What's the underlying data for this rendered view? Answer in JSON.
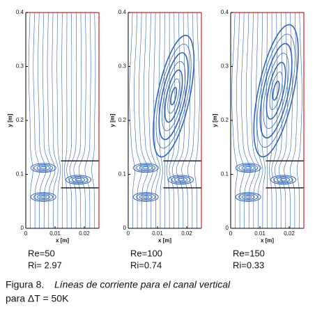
{
  "chart_data": [
    {
      "type": "streamline",
      "xlabel": "x [m]",
      "ylabel": "y [m]",
      "xlim": [
        0,
        0.025
      ],
      "ylim": [
        0,
        0.4
      ],
      "xticks": [
        0,
        0.01,
        0.02
      ],
      "yticks": [
        0,
        0.1,
        0.2,
        0.3,
        0.4
      ],
      "notes": [
        "Re=50",
        "Ri= 2.97"
      ],
      "color": "#2f64c0",
      "wall_color": "#d42020"
    },
    {
      "type": "streamline",
      "xlabel": "x [m]",
      "ylabel": "y [m]",
      "xlim": [
        0,
        0.025
      ],
      "ylim": [
        0,
        0.4
      ],
      "xticks": [
        0,
        0.01,
        0.02
      ],
      "yticks": [
        0,
        0.1,
        0.2,
        0.3,
        0.4
      ],
      "notes": [
        "Re=100",
        "Ri=0.74"
      ],
      "color": "#2f64c0",
      "wall_color": "#d42020"
    },
    {
      "type": "streamline",
      "xlabel": "x [m]",
      "ylabel": "y [m]",
      "xlim": [
        0,
        0.025
      ],
      "ylim": [
        0,
        0.4
      ],
      "xticks": [
        0,
        0.01,
        0.02
      ],
      "yticks": [
        0,
        0.1,
        0.2,
        0.3,
        0.4
      ],
      "notes": [
        "Re=150",
        "Ri=0.33"
      ],
      "color": "#2f64c0",
      "wall_color": "#d42020"
    }
  ],
  "caption": {
    "label": "Figura 8.",
    "text": "Líneas de corriente para el canal vertical",
    "line2": "para ΔT = 50K"
  }
}
